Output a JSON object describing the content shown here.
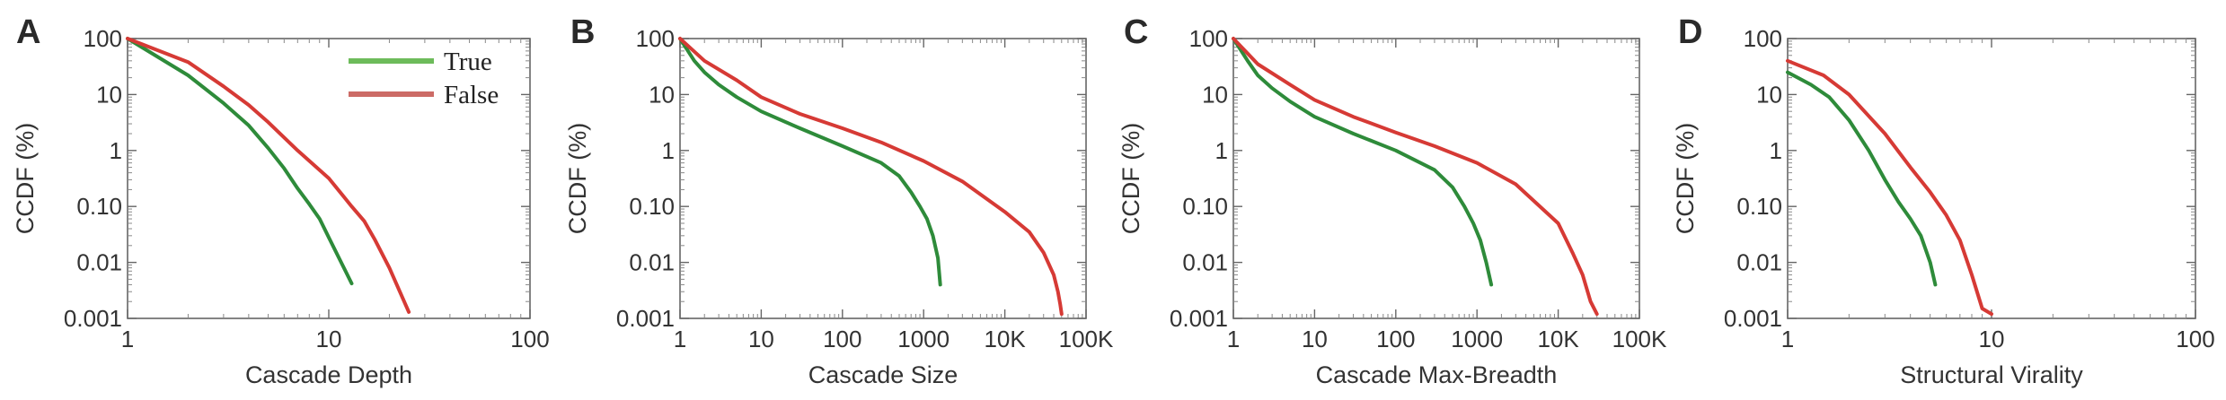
{
  "legend": {
    "entries": [
      {
        "label": "True",
        "color": "#2e8b3a",
        "swatch": "#6dbb5a"
      },
      {
        "label": "False",
        "color": "#d63a35",
        "swatch": "#cc6b66"
      }
    ]
  },
  "chart_data": [
    {
      "panel": "A",
      "type": "line",
      "xlabel": "Cascade Depth",
      "ylabel": "CCDF (%)",
      "x_scale": "log",
      "y_scale": "log",
      "xlim": [
        1,
        100
      ],
      "ylim": [
        0.001,
        100
      ],
      "xticks": [
        {
          "value": 1,
          "label": "1"
        },
        {
          "value": 10,
          "label": "10"
        },
        {
          "value": 100,
          "label": "100"
        }
      ],
      "yticks": [
        {
          "value": 100,
          "label": "100"
        },
        {
          "value": 10,
          "label": "10"
        },
        {
          "value": 1,
          "label": "1"
        },
        {
          "value": 0.1,
          "label": "0.10"
        },
        {
          "value": 0.01,
          "label": "0.01"
        },
        {
          "value": 0.001,
          "label": "0.001"
        }
      ],
      "legend": true,
      "series": [
        {
          "name": "True",
          "color": "#2e8b3a",
          "x": [
            1,
            2,
            3,
            4,
            5,
            6,
            7,
            8,
            9,
            10,
            11,
            12,
            13
          ],
          "y": [
            100,
            22,
            7,
            2.8,
            1.1,
            0.48,
            0.21,
            0.11,
            0.06,
            0.028,
            0.014,
            0.0075,
            0.0042
          ]
        },
        {
          "name": "False",
          "color": "#d63a35",
          "x": [
            1,
            2,
            3,
            4,
            5,
            7,
            10,
            13,
            15,
            17,
            20,
            25
          ],
          "y": [
            100,
            38,
            14,
            6.5,
            3.2,
            1.0,
            0.32,
            0.1,
            0.055,
            0.025,
            0.008,
            0.0013
          ]
        }
      ]
    },
    {
      "panel": "B",
      "type": "line",
      "xlabel": "Cascade Size",
      "ylabel": "CCDF (%)",
      "x_scale": "log",
      "y_scale": "log",
      "xlim": [
        1,
        100000
      ],
      "ylim": [
        0.001,
        100
      ],
      "xticks": [
        {
          "value": 1,
          "label": "1"
        },
        {
          "value": 10,
          "label": "10"
        },
        {
          "value": 100,
          "label": "100"
        },
        {
          "value": 1000,
          "label": "1000"
        },
        {
          "value": 10000,
          "label": "10K"
        },
        {
          "value": 100000,
          "label": "100K"
        }
      ],
      "yticks": [
        {
          "value": 100,
          "label": "100"
        },
        {
          "value": 10,
          "label": "10"
        },
        {
          "value": 1,
          "label": "1"
        },
        {
          "value": 0.1,
          "label": "0.10"
        },
        {
          "value": 0.01,
          "label": "0.01"
        },
        {
          "value": 0.001,
          "label": "0.001"
        }
      ],
      "legend": false,
      "series": [
        {
          "name": "True",
          "color": "#2e8b3a",
          "x": [
            1,
            1.5,
            2,
            3,
            5,
            10,
            30,
            100,
            300,
            500,
            700,
            900,
            1100,
            1300,
            1500,
            1600
          ],
          "y": [
            100,
            40,
            25,
            15,
            9,
            5,
            2.5,
            1.2,
            0.6,
            0.35,
            0.18,
            0.1,
            0.06,
            0.03,
            0.012,
            0.004
          ]
        },
        {
          "name": "False",
          "color": "#d63a35",
          "x": [
            1,
            2,
            5,
            10,
            30,
            100,
            300,
            1000,
            3000,
            10000,
            20000,
            30000,
            40000,
            45000,
            48000,
            50000
          ],
          "y": [
            100,
            40,
            18,
            9,
            4.5,
            2.5,
            1.4,
            0.65,
            0.28,
            0.08,
            0.035,
            0.015,
            0.006,
            0.003,
            0.0018,
            0.0012
          ]
        }
      ]
    },
    {
      "panel": "C",
      "type": "line",
      "xlabel": "Cascade Max-Breadth",
      "ylabel": "CCDF (%)",
      "x_scale": "log",
      "y_scale": "log",
      "xlim": [
        1,
        100000
      ],
      "ylim": [
        0.001,
        100
      ],
      "xticks": [
        {
          "value": 1,
          "label": "1"
        },
        {
          "value": 10,
          "label": "10"
        },
        {
          "value": 100,
          "label": "100"
        },
        {
          "value": 1000,
          "label": "1000"
        },
        {
          "value": 10000,
          "label": "10K"
        },
        {
          "value": 100000,
          "label": "100K"
        }
      ],
      "yticks": [
        {
          "value": 100,
          "label": "100"
        },
        {
          "value": 10,
          "label": "10"
        },
        {
          "value": 1,
          "label": "1"
        },
        {
          "value": 0.1,
          "label": "0.10"
        },
        {
          "value": 0.01,
          "label": "0.01"
        },
        {
          "value": 0.001,
          "label": "0.001"
        }
      ],
      "legend": false,
      "series": [
        {
          "name": "True",
          "color": "#2e8b3a",
          "x": [
            1,
            1.5,
            2,
            3,
            5,
            10,
            30,
            100,
            300,
            500,
            700,
            900,
            1100,
            1300,
            1500
          ],
          "y": [
            100,
            40,
            22,
            13,
            7.5,
            4,
            2,
            1,
            0.45,
            0.22,
            0.1,
            0.05,
            0.025,
            0.01,
            0.004
          ]
        },
        {
          "name": "False",
          "color": "#d63a35",
          "x": [
            1,
            2,
            5,
            10,
            30,
            100,
            300,
            1000,
            3000,
            10000,
            15000,
            20000,
            25000,
            30000
          ],
          "y": [
            100,
            35,
            15,
            8,
            4,
            2.1,
            1.2,
            0.6,
            0.25,
            0.05,
            0.015,
            0.006,
            0.002,
            0.0012
          ]
        }
      ]
    },
    {
      "panel": "D",
      "type": "line",
      "xlabel": "Structural Virality",
      "ylabel": "CCDF (%)",
      "x_scale": "log",
      "y_scale": "log",
      "xlim": [
        1,
        100
      ],
      "ylim": [
        0.001,
        100
      ],
      "xticks": [
        {
          "value": 1,
          "label": "1"
        },
        {
          "value": 10,
          "label": "10"
        },
        {
          "value": 100,
          "label": "100"
        }
      ],
      "yticks": [
        {
          "value": 100,
          "label": "100"
        },
        {
          "value": 10,
          "label": "10"
        },
        {
          "value": 1,
          "label": "1"
        },
        {
          "value": 0.1,
          "label": "0.10"
        },
        {
          "value": 0.01,
          "label": "0.01"
        },
        {
          "value": 0.001,
          "label": "0.001"
        }
      ],
      "legend": false,
      "series": [
        {
          "name": "True",
          "color": "#2e8b3a",
          "x": [
            1,
            1.3,
            1.6,
            2,
            2.5,
            3,
            3.5,
            4,
            4.5,
            5,
            5.3
          ],
          "y": [
            25,
            15,
            9,
            3.5,
            1,
            0.3,
            0.12,
            0.06,
            0.03,
            0.01,
            0.004
          ]
        },
        {
          "name": "False",
          "color": "#d63a35",
          "x": [
            1,
            1.5,
            2,
            3,
            4,
            5,
            6,
            7,
            8,
            9,
            10
          ],
          "y": [
            40,
            22,
            10,
            2,
            0.5,
            0.18,
            0.07,
            0.025,
            0.006,
            0.0015,
            0.0012
          ]
        }
      ]
    }
  ]
}
